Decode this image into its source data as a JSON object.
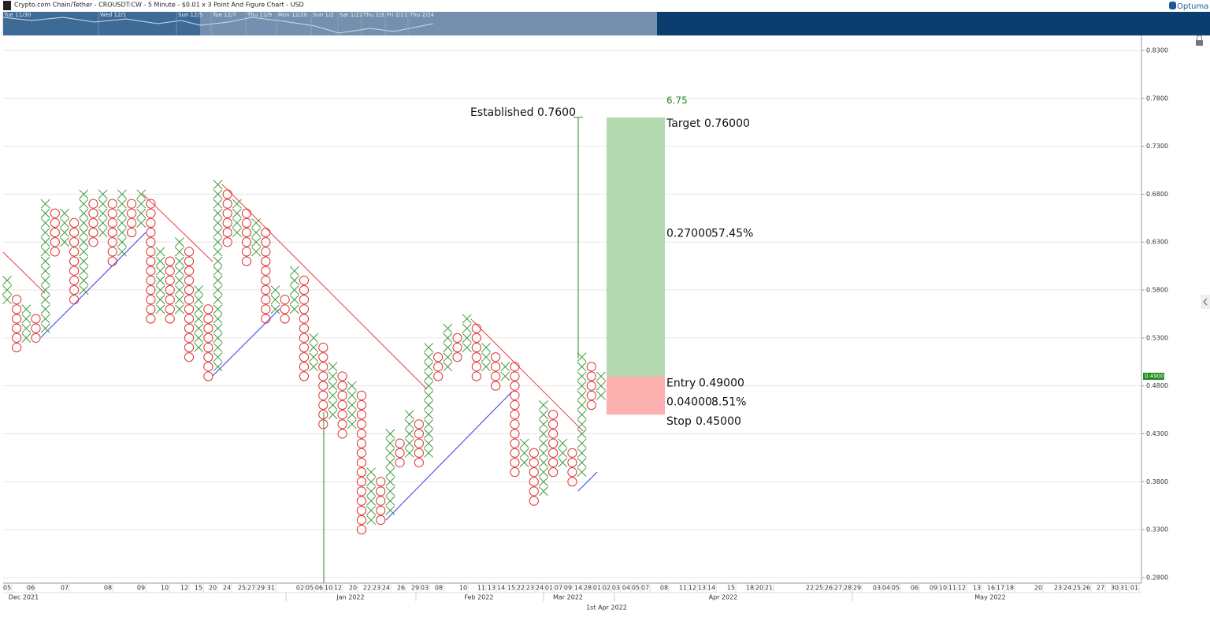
{
  "chart_data": {
    "type": "point_and_figure",
    "title": "Crypto.com Chain/Tether - CROUSDT:CW - 5 Minute - $0.01 x 3 Point And Figure Chart - USD",
    "brand": "Optuma",
    "navigator_labels": [
      "Tue 11/30",
      "Wed 12/1",
      "Sun 12/5",
      "Tue 12/7",
      "Thu 12/9",
      "Mon 12/20",
      "Sun 1/2",
      "Sat 1/22",
      "Thu 2/3",
      "Fri 2/11",
      "Thu 2/24"
    ],
    "box_size": 0.01,
    "x_color": "#3c9a3c",
    "o_color": "#e03232",
    "columns": [
      {
        "type": "X",
        "low": 0.57,
        "high": 0.59
      },
      {
        "type": "O",
        "low": 0.52,
        "high": 0.57
      },
      {
        "type": "X",
        "low": 0.53,
        "high": 0.56
      },
      {
        "type": "O",
        "low": 0.53,
        "high": 0.55
      },
      {
        "type": "X",
        "low": 0.54,
        "high": 0.67
      },
      {
        "type": "O",
        "low": 0.62,
        "high": 0.66
      },
      {
        "type": "X",
        "low": 0.63,
        "high": 0.66
      },
      {
        "type": "O",
        "low": 0.57,
        "high": 0.65
      },
      {
        "type": "X",
        "low": 0.58,
        "high": 0.68
      },
      {
        "type": "O",
        "low": 0.63,
        "high": 0.67
      },
      {
        "type": "X",
        "low": 0.64,
        "high": 0.68
      },
      {
        "type": "O",
        "low": 0.61,
        "high": 0.67
      },
      {
        "type": "X",
        "low": 0.62,
        "high": 0.68
      },
      {
        "type": "O",
        "low": 0.64,
        "high": 0.67
      },
      {
        "type": "X",
        "low": 0.65,
        "high": 0.68
      },
      {
        "type": "O",
        "low": 0.55,
        "high": 0.67
      },
      {
        "type": "X",
        "low": 0.56,
        "high": 0.62
      },
      {
        "type": "O",
        "low": 0.55,
        "high": 0.61
      },
      {
        "type": "X",
        "low": 0.56,
        "high": 0.63
      },
      {
        "type": "O",
        "low": 0.51,
        "high": 0.62
      },
      {
        "type": "X",
        "low": 0.52,
        "high": 0.58
      },
      {
        "type": "O",
        "low": 0.49,
        "high": 0.56
      },
      {
        "type": "X",
        "low": 0.5,
        "high": 0.69
      },
      {
        "type": "O",
        "low": 0.63,
        "high": 0.68
      },
      {
        "type": "X",
        "low": 0.64,
        "high": 0.67
      },
      {
        "type": "O",
        "low": 0.61,
        "high": 0.66
      },
      {
        "type": "X",
        "low": 0.62,
        "high": 0.65
      },
      {
        "type": "O",
        "low": 0.55,
        "high": 0.64
      },
      {
        "type": "X",
        "low": 0.56,
        "high": 0.58
      },
      {
        "type": "O",
        "low": 0.55,
        "high": 0.57
      },
      {
        "type": "X",
        "low": 0.56,
        "high": 0.6
      },
      {
        "type": "O",
        "low": 0.49,
        "high": 0.59
      },
      {
        "type": "X",
        "low": 0.5,
        "high": 0.53
      },
      {
        "type": "O",
        "low": 0.44,
        "high": 0.52
      },
      {
        "type": "X",
        "low": 0.45,
        "high": 0.5
      },
      {
        "type": "O",
        "low": 0.43,
        "high": 0.49
      },
      {
        "type": "X",
        "low": 0.44,
        "high": 0.48
      },
      {
        "type": "O",
        "low": 0.33,
        "high": 0.47
      },
      {
        "type": "X",
        "low": 0.34,
        "high": 0.39
      },
      {
        "type": "O",
        "low": 0.34,
        "high": 0.38
      },
      {
        "type": "X",
        "low": 0.35,
        "high": 0.43
      },
      {
        "type": "O",
        "low": 0.4,
        "high": 0.42
      },
      {
        "type": "X",
        "low": 0.41,
        "high": 0.45
      },
      {
        "type": "O",
        "low": 0.4,
        "high": 0.44
      },
      {
        "type": "X",
        "low": 0.41,
        "high": 0.52
      },
      {
        "type": "O",
        "low": 0.49,
        "high": 0.51
      },
      {
        "type": "X",
        "low": 0.5,
        "high": 0.54
      },
      {
        "type": "O",
        "low": 0.51,
        "high": 0.53
      },
      {
        "type": "X",
        "low": 0.52,
        "high": 0.55
      },
      {
        "type": "O",
        "low": 0.49,
        "high": 0.54
      },
      {
        "type": "X",
        "low": 0.5,
        "high": 0.52
      },
      {
        "type": "O",
        "low": 0.48,
        "high": 0.51
      },
      {
        "type": "X",
        "low": 0.49,
        "high": 0.5
      },
      {
        "type": "O",
        "low": 0.39,
        "high": 0.5
      },
      {
        "type": "X",
        "low": 0.4,
        "high": 0.42
      },
      {
        "type": "O",
        "low": 0.36,
        "high": 0.41
      },
      {
        "type": "X",
        "low": 0.37,
        "high": 0.46
      },
      {
        "type": "O",
        "low": 0.39,
        "high": 0.45
      },
      {
        "type": "X",
        "low": 0.4,
        "high": 0.42
      },
      {
        "type": "O",
        "low": 0.38,
        "high": 0.41
      },
      {
        "type": "X",
        "low": 0.39,
        "high": 0.51
      },
      {
        "type": "O",
        "low": 0.46,
        "high": 0.5
      },
      {
        "type": "X",
        "low": 0.47,
        "high": 0.49
      }
    ],
    "ylim": [
      0.2742,
      0.8456
    ],
    "yticks": [
      {
        "value": 0.28,
        "label": "0.2800"
      },
      {
        "value": 0.33,
        "label": "0.3300"
      },
      {
        "value": 0.38,
        "label": "0.3800"
      },
      {
        "value": 0.43,
        "label": "0.4300"
      },
      {
        "value": 0.48,
        "label": "0.4800"
      },
      {
        "value": 0.53,
        "label": "0.5300"
      },
      {
        "value": 0.58,
        "label": "0.5800"
      },
      {
        "value": 0.63,
        "label": "0.6300"
      },
      {
        "value": 0.68,
        "label": "0.6800"
      },
      {
        "value": 0.73,
        "label": "0.7300"
      },
      {
        "value": 0.78,
        "label": "0.7800"
      },
      {
        "value": 0.83,
        "label": "0.8300"
      }
    ],
    "grid": true,
    "date_labels": [
      "05",
      "06",
      "07",
      "08",
      "09",
      "10",
      "12",
      "15",
      "20",
      "24",
      "25",
      "27",
      "29",
      "31",
      "02",
      "05",
      "06",
      "10",
      "12",
      "20",
      "22",
      "23",
      "24",
      "26",
      "29",
      "03",
      "08",
      "10",
      "11",
      "13",
      "14",
      "15",
      "22",
      "23",
      "24",
      "01",
      "07",
      "09",
      "14",
      "28",
      "01",
      "02",
      "03",
      "04",
      "05",
      "07",
      "08",
      "11",
      "12",
      "13",
      "14",
      "15",
      "18",
      "20",
      "21",
      "22",
      "25",
      "26",
      "27",
      "28",
      "29",
      "03",
      "04",
      "05",
      "06",
      "09",
      "10",
      "11",
      "12",
      "13",
      "16",
      "17",
      "18",
      "20",
      "23",
      "24",
      "25",
      "26",
      "27",
      "30",
      "31",
      "01"
    ],
    "month_labels": [
      "Dec 2021",
      "Jan 2022",
      "Feb 2022",
      "Mar 2022",
      "Apr 2022",
      "May 2022"
    ],
    "cursor_date": "1st Apr 2022",
    "established": "Established 0.7600",
    "last_price": 0.49,
    "last_price_label": "0.4900",
    "trade": {
      "ratio": 6.75,
      "target_label": "Target",
      "target": 0.76,
      "target_text": "0.76000",
      "reward": 0.27,
      "reward_text": "0.27000",
      "reward_pct": 57.45,
      "reward_pct_text": "57.45%",
      "entry_label": "Entry",
      "entry": 0.49,
      "entry_text": "0.49000",
      "risk": 0.04,
      "risk_text": "0.04000",
      "risk_pct": 8.51,
      "risk_pct_text": "8.51%",
      "stop_label": "Stop",
      "stop": 0.45,
      "stop_text": "0.45000"
    }
  }
}
